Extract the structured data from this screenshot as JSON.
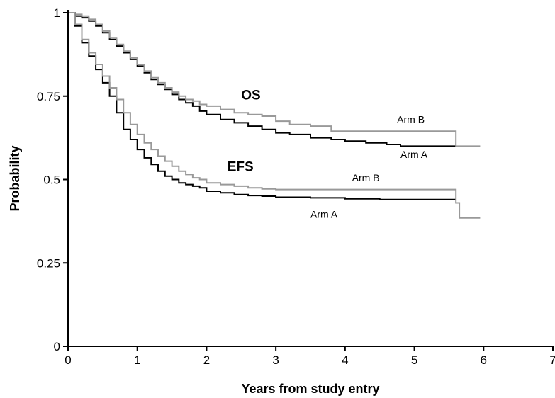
{
  "chart_data": {
    "type": "line",
    "title": "",
    "xlabel": "Years from study entry",
    "ylabel": "Probability",
    "xlim": [
      0,
      7
    ],
    "ylim": [
      0,
      1
    ],
    "x_ticks": [
      0,
      1,
      2,
      3,
      4,
      5,
      6,
      7
    ],
    "y_ticks": [
      0,
      0.25,
      0.5,
      0.75,
      1
    ],
    "y_tick_labels": [
      "0",
      "0.25",
      "0.5",
      "0.75",
      "1"
    ],
    "grid": false,
    "series": [
      {
        "name": "Arm A",
        "group": "OS",
        "color": "#000000",
        "x": [
          0,
          0.1,
          0.2,
          0.3,
          0.4,
          0.5,
          0.6,
          0.7,
          0.8,
          0.9,
          1.0,
          1.1,
          1.2,
          1.3,
          1.4,
          1.5,
          1.6,
          1.7,
          1.8,
          1.9,
          2.0,
          2.2,
          2.4,
          2.6,
          2.8,
          3.0,
          3.2,
          3.5,
          3.8,
          4.0,
          4.3,
          4.6,
          4.8,
          5.0,
          5.3,
          5.6
        ],
        "y": [
          1,
          0.99,
          0.985,
          0.975,
          0.96,
          0.94,
          0.92,
          0.9,
          0.88,
          0.86,
          0.84,
          0.82,
          0.8,
          0.785,
          0.77,
          0.755,
          0.74,
          0.73,
          0.72,
          0.705,
          0.695,
          0.68,
          0.67,
          0.66,
          0.65,
          0.64,
          0.635,
          0.625,
          0.62,
          0.615,
          0.61,
          0.605,
          0.6,
          0.6,
          0.6,
          0.6
        ]
      },
      {
        "name": "Arm B",
        "group": "OS",
        "color": "#999999",
        "x": [
          0,
          0.1,
          0.2,
          0.3,
          0.4,
          0.5,
          0.6,
          0.7,
          0.8,
          0.9,
          1.0,
          1.1,
          1.2,
          1.3,
          1.4,
          1.5,
          1.6,
          1.7,
          1.8,
          1.9,
          2.0,
          2.2,
          2.4,
          2.6,
          2.8,
          3.0,
          3.2,
          3.5,
          3.8,
          4.0,
          4.5,
          5.0,
          5.3,
          5.6,
          5.6,
          5.95
        ],
        "y": [
          1,
          0.995,
          0.99,
          0.98,
          0.965,
          0.945,
          0.925,
          0.905,
          0.885,
          0.865,
          0.845,
          0.825,
          0.805,
          0.79,
          0.775,
          0.762,
          0.75,
          0.74,
          0.735,
          0.725,
          0.72,
          0.71,
          0.7,
          0.695,
          0.69,
          0.675,
          0.665,
          0.66,
          0.645,
          0.645,
          0.645,
          0.645,
          0.645,
          0.645,
          0.6,
          0.6
        ]
      },
      {
        "name": "Arm A",
        "group": "EFS",
        "color": "#000000",
        "x": [
          0,
          0.1,
          0.2,
          0.3,
          0.4,
          0.5,
          0.6,
          0.7,
          0.8,
          0.9,
          1.0,
          1.1,
          1.2,
          1.3,
          1.4,
          1.5,
          1.6,
          1.7,
          1.8,
          1.9,
          2.0,
          2.2,
          2.4,
          2.6,
          2.8,
          3.0,
          3.5,
          4.0,
          4.5,
          5.0,
          5.6
        ],
        "y": [
          1,
          0.96,
          0.91,
          0.87,
          0.83,
          0.79,
          0.75,
          0.7,
          0.65,
          0.62,
          0.59,
          0.565,
          0.545,
          0.525,
          0.51,
          0.5,
          0.49,
          0.485,
          0.48,
          0.475,
          0.465,
          0.46,
          0.455,
          0.452,
          0.45,
          0.447,
          0.445,
          0.442,
          0.44,
          0.44,
          0.44
        ]
      },
      {
        "name": "Arm B",
        "group": "EFS",
        "color": "#999999",
        "x": [
          0,
          0.1,
          0.2,
          0.3,
          0.4,
          0.5,
          0.6,
          0.7,
          0.8,
          0.9,
          1.0,
          1.1,
          1.2,
          1.3,
          1.4,
          1.5,
          1.6,
          1.7,
          1.8,
          1.9,
          2.0,
          2.2,
          2.4,
          2.6,
          2.8,
          3.0,
          3.5,
          4.0,
          4.5,
          5.0,
          5.6,
          5.6,
          5.65,
          5.95
        ],
        "y": [
          1,
          0.965,
          0.92,
          0.88,
          0.845,
          0.81,
          0.775,
          0.74,
          0.7,
          0.665,
          0.635,
          0.61,
          0.59,
          0.57,
          0.555,
          0.54,
          0.525,
          0.515,
          0.505,
          0.5,
          0.49,
          0.485,
          0.48,
          0.475,
          0.472,
          0.47,
          0.47,
          0.47,
          0.47,
          0.47,
          0.47,
          0.43,
          0.385,
          0.385
        ]
      }
    ],
    "annotations": [
      {
        "text": "OS",
        "x": 2.5,
        "y": 0.74,
        "style": "curve-label"
      },
      {
        "text": "EFS",
        "x": 2.3,
        "y": 0.525,
        "style": "curve-label"
      },
      {
        "text": "Arm B",
        "x": 4.75,
        "y": 0.67,
        "style": "arm-label"
      },
      {
        "text": "Arm A",
        "x": 4.8,
        "y": 0.565,
        "style": "arm-label"
      },
      {
        "text": "Arm B",
        "x": 4.1,
        "y": 0.495,
        "style": "arm-label"
      },
      {
        "text": "Arm A",
        "x": 3.5,
        "y": 0.385,
        "style": "arm-label"
      }
    ]
  }
}
